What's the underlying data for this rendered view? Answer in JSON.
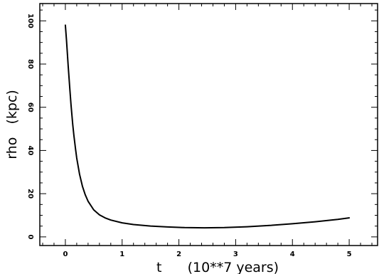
{
  "chart_data": {
    "type": "line",
    "title": "",
    "xlabel": "t      (10**7 years)",
    "ylabel": "rho   (kpc)",
    "xlim": [
      -0.45,
      5.5
    ],
    "ylim": [
      -4,
      108
    ],
    "xticks": [
      0,
      1,
      2,
      3,
      4,
      5
    ],
    "xtick_labels": [
      "0",
      "1",
      "2",
      "3",
      "4",
      "5"
    ],
    "yticks": [
      0,
      20,
      40,
      60,
      80,
      100
    ],
    "ytick_labels": [
      "0",
      "20",
      "40",
      "60",
      "80",
      "100"
    ],
    "grid": false,
    "series": [
      {
        "values": [
          [
            0.0,
            98.0
          ],
          [
            0.02,
            91.0
          ],
          [
            0.05,
            79.0
          ],
          [
            0.08,
            68.0
          ],
          [
            0.1,
            61.0
          ],
          [
            0.13,
            52.0
          ],
          [
            0.15,
            47.0
          ],
          [
            0.18,
            40.5
          ],
          [
            0.2,
            36.5
          ],
          [
            0.25,
            29.0
          ],
          [
            0.3,
            23.5
          ],
          [
            0.35,
            19.5
          ],
          [
            0.4,
            16.5
          ],
          [
            0.5,
            12.5
          ],
          [
            0.6,
            10.2
          ],
          [
            0.7,
            8.8
          ],
          [
            0.8,
            7.8
          ],
          [
            1.0,
            6.5
          ],
          [
            1.2,
            5.7
          ],
          [
            1.5,
            5.0
          ],
          [
            1.8,
            4.6
          ],
          [
            2.1,
            4.3
          ],
          [
            2.45,
            4.2
          ],
          [
            2.8,
            4.3
          ],
          [
            3.2,
            4.7
          ],
          [
            3.6,
            5.3
          ],
          [
            4.0,
            6.1
          ],
          [
            4.4,
            7.0
          ],
          [
            4.8,
            8.1
          ],
          [
            5.0,
            8.8
          ]
        ]
      }
    ]
  }
}
